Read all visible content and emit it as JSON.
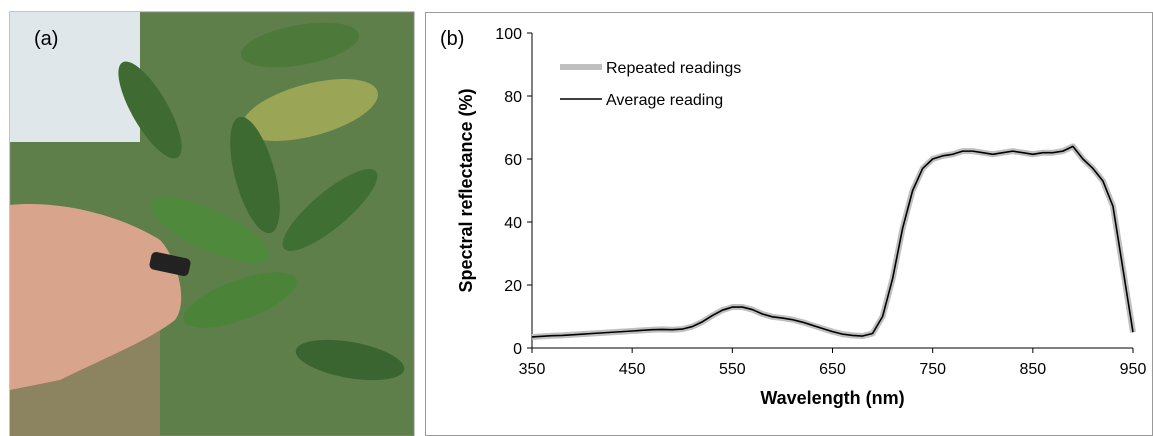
{
  "panel_a": {
    "label": "(a)"
  },
  "chart_data": {
    "type": "line",
    "panel_label": "(b)",
    "x_label": "Wavelength (nm)",
    "y_label": "Spectral reflectance (%)",
    "x": [
      350,
      360,
      370,
      380,
      390,
      400,
      410,
      420,
      430,
      440,
      450,
      460,
      470,
      480,
      490,
      500,
      510,
      520,
      530,
      540,
      550,
      560,
      570,
      580,
      590,
      600,
      610,
      620,
      630,
      640,
      650,
      660,
      670,
      680,
      690,
      700,
      710,
      720,
      730,
      740,
      750,
      760,
      770,
      780,
      790,
      800,
      810,
      820,
      830,
      840,
      850,
      860,
      870,
      880,
      890,
      900,
      910,
      920,
      930,
      940,
      950
    ],
    "series": [
      {
        "name": "Repeated readings",
        "color": "#bfbfbf",
        "width": 6,
        "values": [
          3.5,
          3.7,
          3.9,
          4.0,
          4.2,
          4.4,
          4.6,
          4.8,
          5.0,
          5.2,
          5.4,
          5.6,
          5.8,
          5.9,
          5.8,
          6.0,
          6.8,
          8.3,
          10.3,
          12.0,
          13.0,
          13.0,
          12.2,
          10.8,
          9.9,
          9.5,
          9.0,
          8.2,
          7.2,
          6.2,
          5.2,
          4.4,
          4.0,
          3.8,
          4.6,
          10.0,
          22.0,
          38.0,
          50.0,
          57.0,
          60.0,
          61.0,
          61.5,
          62.5,
          62.5,
          62.0,
          61.5,
          62.0,
          62.5,
          62.0,
          61.5,
          62.0,
          62.0,
          62.5,
          64.0,
          60.0,
          57.0,
          53.0,
          45.0,
          25.0,
          5.0
        ]
      },
      {
        "name": "Average reading",
        "color": "#000000",
        "width": 1.6,
        "values": [
          3.5,
          3.7,
          3.9,
          4.0,
          4.2,
          4.4,
          4.6,
          4.8,
          5.0,
          5.2,
          5.4,
          5.6,
          5.8,
          5.9,
          5.8,
          6.0,
          6.8,
          8.3,
          10.3,
          12.0,
          13.0,
          13.0,
          12.2,
          10.8,
          9.9,
          9.5,
          9.0,
          8.2,
          7.2,
          6.2,
          5.2,
          4.4,
          4.0,
          3.8,
          4.6,
          10.0,
          22.0,
          38.0,
          50.0,
          57.0,
          60.0,
          61.0,
          61.5,
          62.5,
          62.5,
          62.0,
          61.5,
          62.0,
          62.5,
          62.0,
          61.5,
          62.0,
          62.0,
          62.5,
          64.0,
          60.0,
          57.0,
          53.0,
          45.0,
          25.0,
          5.0
        ]
      }
    ],
    "xlim": [
      350,
      950
    ],
    "ylim": [
      0,
      100
    ],
    "xticks": [
      350,
      450,
      550,
      650,
      750,
      850,
      950
    ],
    "yticks": [
      0,
      20,
      40,
      60,
      80,
      100
    ],
    "grid": false,
    "legend": "top-left"
  }
}
